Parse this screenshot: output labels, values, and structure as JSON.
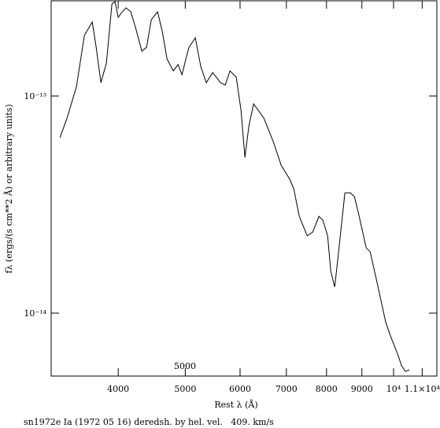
{
  "chart_data": {
    "type": "line",
    "x_label": "Rest λ (Å)",
    "y_label": "fλ (ergs/(s cm**2 Å) or arbitrary units)",
    "annotation": "5000",
    "caption": "sn1972e Ia (1972 05 16) deredsh. by hel. vel.   409. km/s",
    "log_x": true,
    "log_y": true,
    "xlim": [
      3200,
      11550
    ],
    "ylim": [
      5.13e-15,
      2.745e-13
    ],
    "xticks": [
      4000,
      5000,
      6000,
      7000,
      8000,
      9000,
      {
        "value": 10000,
        "label": "10⁴"
      },
      {
        "value": 11000,
        "label": "1.1×10⁴"
      }
    ],
    "yticks": [
      {
        "value": 1e-14,
        "label": "10⁻¹⁴"
      },
      {
        "value": 1e-13,
        "label": "10⁻¹³"
      }
    ],
    "color": "#000000",
    "x": [
      3295,
      3374,
      3481,
      3574,
      3669,
      3717,
      3776,
      3846,
      3917,
      3958,
      4000,
      4053,
      4106,
      4171,
      4237,
      4327,
      4396,
      4465,
      4560,
      4632,
      4706,
      4805,
      4882,
      4946,
      5010,
      5063,
      5170,
      5266,
      5363,
      5477,
      5622,
      5712,
      5802,
      5924,
      6019,
      6098,
      6179,
      6277,
      6493,
      6702,
      6880,
      7081,
      7174,
      7307,
      7502,
      7640,
      7802,
      7904,
      8030,
      8115,
      8222,
      8329,
      8505,
      8663,
      8778,
      8893,
      9129,
      9249,
      9445,
      9745,
      9926,
      10137,
      10270,
      10404,
      10541
    ],
    "values": [
      6.43e-14,
      7.92e-14,
      1.105e-13,
      1.901e-13,
      2.191e-13,
      1.677e-13,
      1.152e-13,
      1.42e-13,
      2.654e-13,
      2.721e-13,
      2.303e-13,
      2.442e-13,
      2.546e-13,
      2.442e-13,
      2.067e-13,
      1.609e-13,
      1.677e-13,
      2.246e-13,
      2.442e-13,
      1.982e-13,
      1.48e-13,
      1.306e-13,
      1.396e-13,
      1.253e-13,
      1.48e-13,
      1.677e-13,
      1.854e-13,
      1.362e-13,
      1.152e-13,
      1.284e-13,
      1.152e-13,
      1.124e-13,
      1.306e-13,
      1.222e-13,
      8.61e-14,
      5.22e-14,
      7.28e-14,
      9.2e-14,
      7.92e-14,
      6.16e-14,
      4.8e-14,
      4.13e-14,
      3.74e-14,
      2.79e-14,
      2.27e-14,
      2.36e-14,
      2.79e-14,
      2.68e-14,
      2.27e-14,
      1.56e-14,
      1.32e-14,
      1.92e-14,
      3.58e-14,
      3.58e-14,
      3.44e-14,
      2.91e-14,
      2e-14,
      1.92e-14,
      1.43e-14,
      9.05e-15,
      7.66e-15,
      6.48e-15,
      5.72e-15,
      5.39e-15,
      5.48e-15
    ]
  }
}
